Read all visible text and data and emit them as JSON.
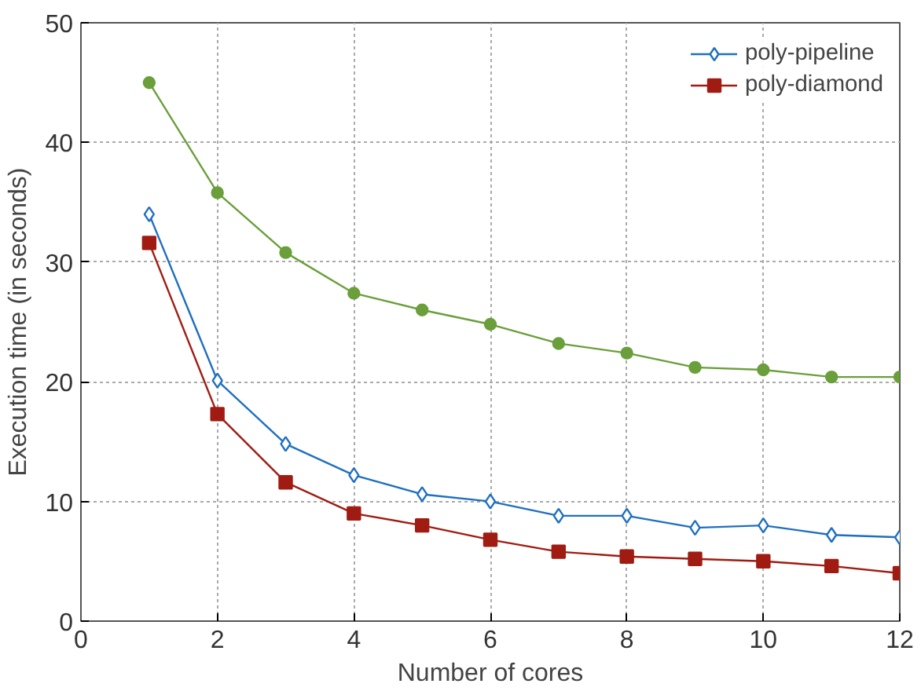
{
  "chart_data": {
    "type": "line",
    "xlabel": "Number of cores",
    "ylabel": "Execution time (in seconds)",
    "x": [
      1,
      2,
      3,
      4,
      5,
      6,
      7,
      8,
      9,
      10,
      11,
      12
    ],
    "xlim": [
      0,
      12
    ],
    "xticks": [
      0,
      2,
      4,
      6,
      8,
      10,
      12
    ],
    "ylim": [
      0,
      50
    ],
    "yticks": [
      0,
      10,
      20,
      30,
      40,
      50
    ],
    "grid": true,
    "legend": "top right",
    "series": [
      {
        "color": "#6a9f3b",
        "marker": "circle",
        "values": [
          45,
          35.8,
          30.8,
          27.4,
          26,
          24.8,
          23.2,
          22.4,
          21.2,
          21,
          20.4,
          20.4
        ]
      },
      {
        "name": "poly-pipeline",
        "color": "#1f6fc0",
        "marker": "diamond",
        "values": [
          34,
          20.1,
          14.8,
          12.2,
          10.6,
          10,
          8.8,
          8.8,
          7.8,
          8,
          7.2,
          7
        ]
      },
      {
        "name": "poly-diamond",
        "color": "#a01c12",
        "marker": "square",
        "values": [
          31.6,
          17.3,
          11.6,
          9,
          8,
          6.8,
          5.8,
          5.4,
          5.2,
          5,
          4.6,
          4
        ]
      }
    ]
  }
}
